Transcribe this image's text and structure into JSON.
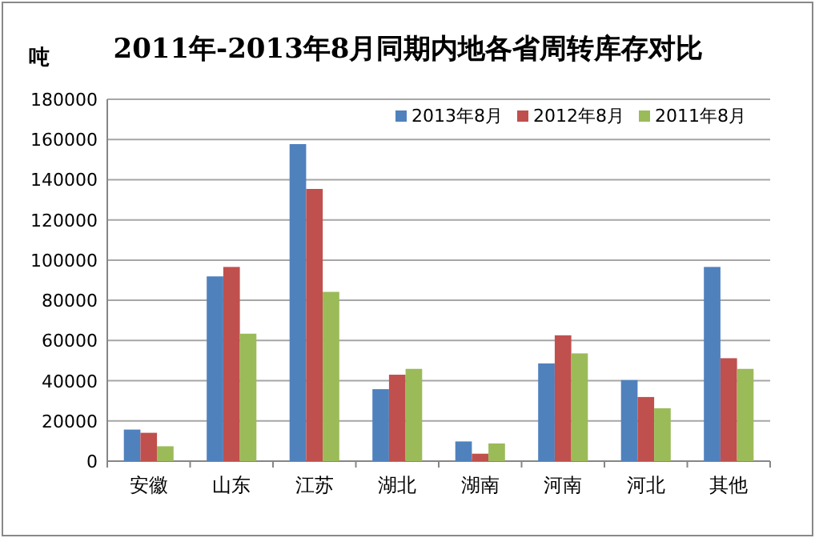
{
  "chart_data": {
    "type": "bar",
    "title": "2011年-2013年8月同期内地各省周转库存对比",
    "ylabel": "吨",
    "categories": [
      "安徽",
      "山东",
      "江苏",
      "湖北",
      "湖南",
      "河南",
      "河北",
      "其他"
    ],
    "series": [
      {
        "name": "2013年8月",
        "color": "#4f81bd",
        "values": [
          15700,
          91900,
          157700,
          35800,
          9800,
          48600,
          40300,
          96600
        ]
      },
      {
        "name": "2012年8月",
        "color": "#c0504d",
        "values": [
          14100,
          96600,
          135400,
          43000,
          3700,
          62600,
          31900,
          51200
        ]
      },
      {
        "name": "2011年8月",
        "color": "#9bbb59",
        "values": [
          7400,
          63400,
          84200,
          45900,
          8800,
          53600,
          26300,
          45900
        ]
      }
    ],
    "ylim": [
      0,
      180000
    ],
    "yticks": [
      0,
      20000,
      40000,
      60000,
      80000,
      100000,
      120000,
      140000,
      160000,
      180000
    ],
    "grid": "y",
    "legend": "top right"
  }
}
